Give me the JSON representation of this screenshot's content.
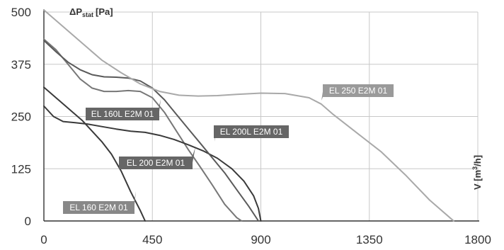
{
  "chart_data": {
    "type": "line",
    "title": "",
    "ylabel": "ΔPstat [Pa]",
    "ylabel_parts": {
      "main": "ΔP",
      "sub": "stat",
      "unit": "[Pa]"
    },
    "xlabel": "V [m³/h]",
    "xlabel_parts": {
      "main": "V [m",
      "sup": "3",
      "unit": "/h]"
    },
    "xlim": [
      0,
      1800
    ],
    "ylim": [
      0,
      500
    ],
    "x_ticks": [
      0,
      450,
      900,
      1350,
      1800
    ],
    "y_ticks": [
      0,
      125,
      250,
      375,
      500
    ],
    "grid": true,
    "legend": "inline labels",
    "series": [
      {
        "name": "EL 160 E2M 01",
        "color": "#3a3a3a",
        "x": [
          0,
          40,
          80,
          120,
          160,
          200,
          240,
          280,
          320,
          360,
          400,
          420
        ],
        "y": [
          320,
          300,
          280,
          260,
          240,
          215,
          190,
          160,
          120,
          70,
          25,
          0
        ]
      },
      {
        "name": "EL 160L E2M 01",
        "color": "#777777",
        "x": [
          0,
          50,
          100,
          150,
          200,
          250,
          300,
          350,
          400,
          450,
          500,
          550,
          600,
          650,
          700,
          750,
          800,
          820
        ],
        "y": [
          435,
          410,
          375,
          340,
          318,
          310,
          310,
          312,
          310,
          295,
          260,
          215,
          170,
          128,
          85,
          40,
          8,
          0
        ]
      },
      {
        "name": "EL 200 E2M 01",
        "color": "#3a3a3a",
        "x": [
          0,
          40,
          80,
          130,
          180,
          240,
          300,
          360,
          420,
          480,
          540,
          600,
          660,
          720,
          780,
          830,
          870,
          890,
          900
        ],
        "y": [
          275,
          250,
          238,
          235,
          232,
          226,
          220,
          215,
          212,
          205,
          195,
          182,
          168,
          150,
          125,
          95,
          60,
          30,
          0
        ]
      },
      {
        "name": "EL 200L E2M 01",
        "color": "#5a5a5a",
        "x": [
          0,
          50,
          100,
          150,
          200,
          250,
          300,
          350,
          400,
          450,
          500,
          550,
          600,
          650,
          700,
          750,
          800,
          850,
          890
        ],
        "y": [
          432,
          405,
          380,
          362,
          350,
          345,
          344,
          342,
          335,
          318,
          290,
          255,
          220,
          185,
          150,
          115,
          75,
          35,
          0
        ]
      },
      {
        "name": "EL 250 E2M 01",
        "color": "#a9a9a9",
        "x": [
          0,
          80,
          160,
          240,
          320,
          400,
          480,
          560,
          640,
          720,
          800,
          900,
          1000,
          1100,
          1150,
          1200,
          1300,
          1400,
          1500,
          1600,
          1700
        ],
        "y": [
          505,
          465,
          425,
          385,
          355,
          328,
          310,
          301,
          299,
          300,
          303,
          306,
          305,
          295,
          280,
          255,
          210,
          165,
          110,
          50,
          0
        ]
      }
    ],
    "annotations": [
      {
        "text": "EL 160L E2M 01",
        "series": "EL 160L E2M 01"
      },
      {
        "text": "EL 200L E2M 01",
        "series": "EL 200L E2M 01"
      },
      {
        "text": "EL 250 E2M 01",
        "series": "EL 250 E2M 01"
      },
      {
        "text": "EL 200 E2M 01",
        "series": "EL 200 E2M 01"
      },
      {
        "text": "EL 160 E2M 01",
        "series": "EL 160 E2M 01"
      }
    ],
    "colors": {
      "grid": "#c8c8c8",
      "axis": "#333333",
      "label_bg_dark": "#666666",
      "label_bg_mid": "#888888",
      "label_bg_light": "#9a9a9a"
    }
  }
}
